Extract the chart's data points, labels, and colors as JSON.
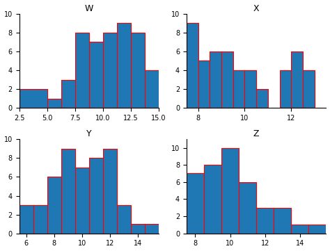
{
  "subplots": [
    {
      "label": "W",
      "bin_edges": [
        2.5,
        5.0,
        6.25,
        7.5,
        8.75,
        10.0,
        11.25,
        12.5,
        13.75,
        15.0
      ],
      "counts": [
        2,
        1,
        3,
        8,
        7,
        8,
        9,
        8,
        4
      ],
      "xticks": [
        2.5,
        5.0,
        7.5,
        10.0,
        12.5,
        15.0
      ],
      "xticklabels": [
        "2.5",
        "5.0",
        "7.5",
        "10.0",
        "12.5",
        "15.0"
      ],
      "xlim": [
        2.5,
        15.0
      ],
      "ylim": [
        0,
        10
      ]
    },
    {
      "label": "X",
      "bin_edges": [
        7.5,
        8.0,
        8.5,
        9.0,
        9.5,
        10.0,
        10.5,
        11.0,
        11.5,
        12.0,
        12.5,
        13.0,
        13.5
      ],
      "counts": [
        9,
        5,
        6,
        6,
        4,
        4,
        2,
        0,
        4,
        6,
        4,
        0
      ],
      "xticks": [
        8,
        10,
        12
      ],
      "xticklabels": [
        "8",
        "10",
        "12"
      ],
      "xlim": [
        7.5,
        13.5
      ],
      "ylim": [
        0,
        10
      ]
    },
    {
      "label": "Y",
      "bin_edges": [
        5.5,
        6.5,
        7.5,
        8.5,
        9.5,
        10.5,
        11.5,
        12.5,
        13.5,
        14.5,
        15.5
      ],
      "counts": [
        3,
        3,
        6,
        9,
        7,
        8,
        9,
        3,
        1,
        1
      ],
      "xticks": [
        6,
        8,
        10,
        12,
        14
      ],
      "xticklabels": [
        "6",
        "8",
        "10",
        "12",
        "14"
      ],
      "xlim": [
        5.5,
        15.5
      ],
      "ylim": [
        0,
        10
      ]
    },
    {
      "label": "Z",
      "bin_edges": [
        7.5,
        8.5,
        9.5,
        10.5,
        11.5,
        12.5,
        13.5,
        14.5,
        15.5
      ],
      "counts": [
        7,
        8,
        10,
        6,
        3,
        3,
        1,
        1
      ],
      "xticks": [
        8,
        10,
        12,
        14
      ],
      "xticklabels": [
        "8",
        "10",
        "12",
        "14"
      ],
      "xlim": [
        7.5,
        15.5
      ],
      "ylim": [
        0,
        11
      ]
    }
  ],
  "bar_color": "#1f77b4",
  "edge_color": "red",
  "linewidth": 0.8
}
